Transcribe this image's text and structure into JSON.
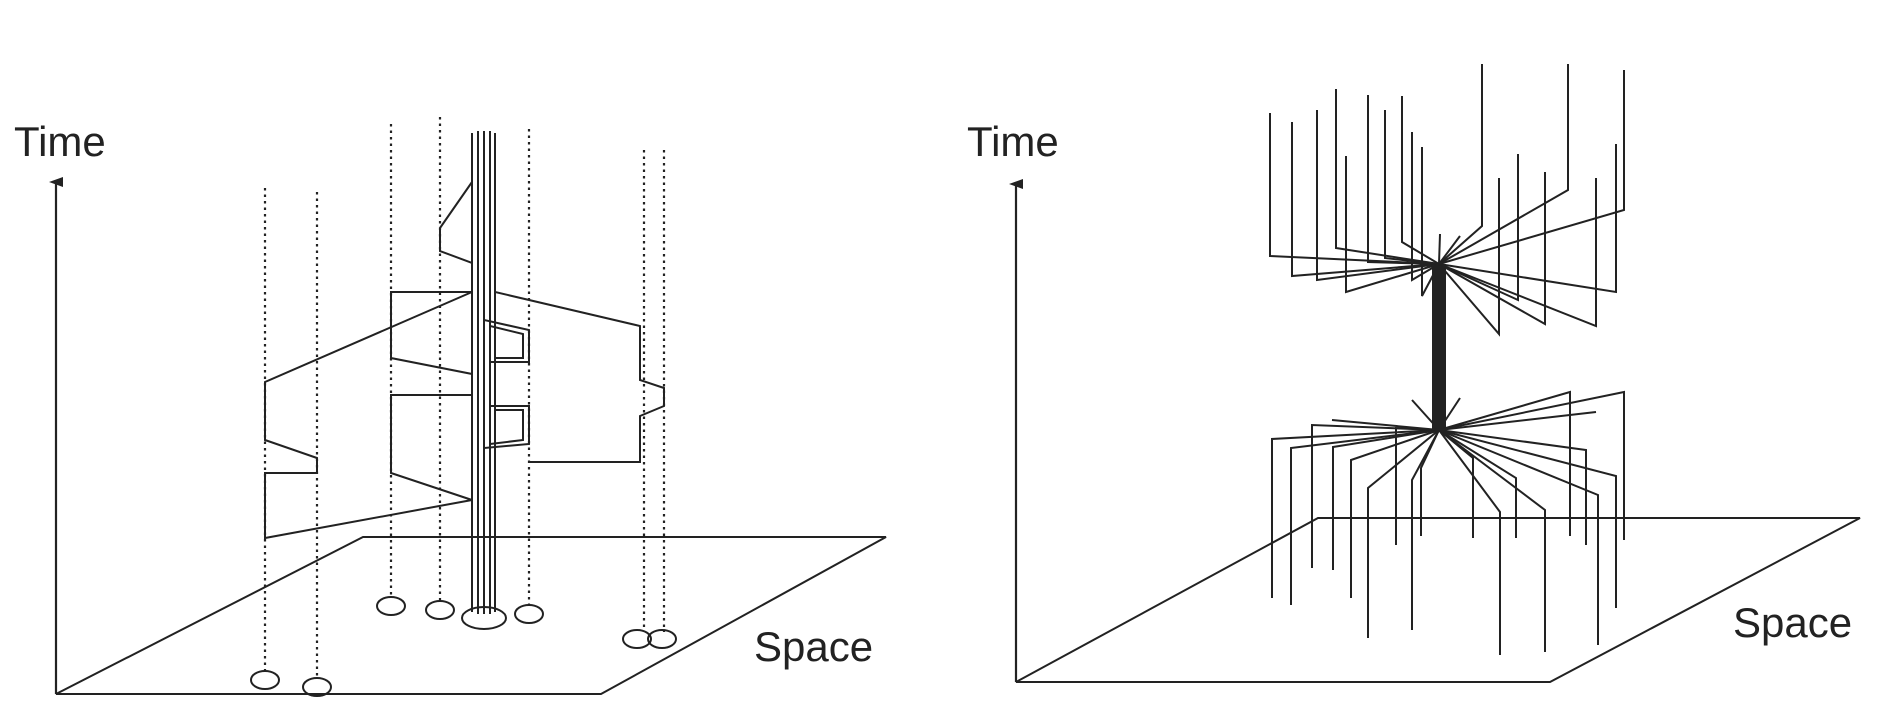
{
  "left_panel": {
    "y_axis_label": "Time",
    "x_axis_label": "Space"
  },
  "right_panel": {
    "y_axis_label": "Time",
    "x_axis_label": "Space"
  },
  "colors": {
    "ink": "#222222",
    "background": "#ffffff"
  }
}
